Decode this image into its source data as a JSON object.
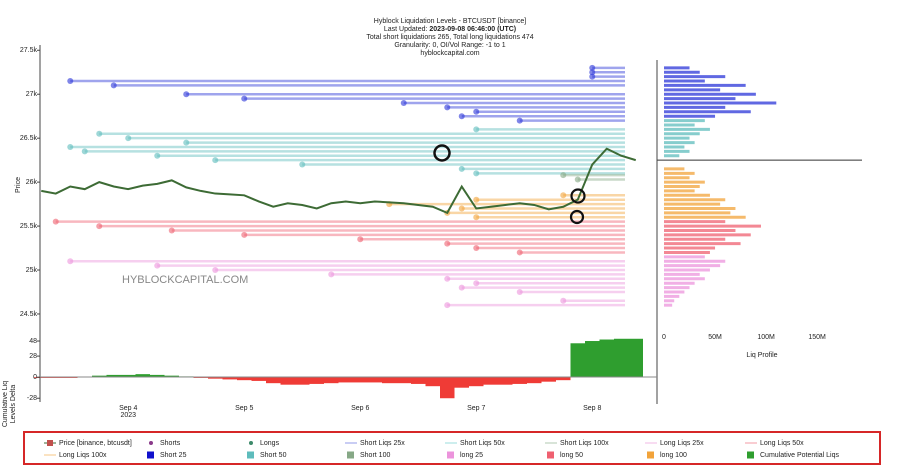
{
  "chart_data": {
    "type": "liquidation",
    "title": "Hyblock Liquidation Levels - BTCUSDT [binance]",
    "updated_prefix": "Last Updated: ",
    "updated_time": "2023-09-08 06:46:00 (UTC)",
    "subtitle": "Total short liquidations 265, Total long liquidations 474",
    "settings_line": "Granularity: 0, OI/Vol Range: -1 to 1",
    "source": "hyblockcapital.com",
    "watermark": "HYBLOCKCAPITAL.COM",
    "y_label": "Price",
    "delta_label": "Cumulative Liq Levels Delta",
    "profile_label": "Liq Profile",
    "year": "2023",
    "categories": [
      null,
      null,
      null,
      null,
      null,
      null,
      "Sep 4",
      null,
      null,
      null,
      null,
      null,
      null,
      null,
      "Sep 5",
      null,
      null,
      null,
      null,
      null,
      null,
      null,
      "Sep 6",
      null,
      null,
      null,
      null,
      null,
      null,
      null,
      "Sep 7",
      null,
      null,
      null,
      null,
      null,
      null,
      null,
      "Sep 8",
      null,
      null,
      null
    ],
    "price": {
      "name": "Price [binance, btcusdt]",
      "color": "#3d6b35",
      "values": [
        25900,
        25870,
        25950,
        25920,
        26000,
        25950,
        25920,
        25960,
        25980,
        26020,
        25940,
        25900,
        25870,
        25860,
        25850,
        25780,
        25720,
        25760,
        25740,
        25700,
        25760,
        25780,
        25760,
        25780,
        25770,
        25760,
        25740,
        25720,
        25650,
        25950,
        25700,
        25720,
        25740,
        25760,
        25740,
        25690,
        25720,
        25800,
        26200,
        26380,
        26300,
        26250
      ]
    },
    "ylim": [
      24420,
      27560
    ],
    "yticks": [
      {
        "value": 27500,
        "label": "27.5k"
      },
      {
        "value": 27000,
        "label": "27k"
      },
      {
        "value": 26500,
        "label": "26.5k"
      },
      {
        "value": 26000,
        "label": "26k"
      },
      {
        "value": 25500,
        "label": "25.5k"
      },
      {
        "value": 25000,
        "label": "25k"
      },
      {
        "value": 24500,
        "label": "24.5k"
      }
    ],
    "liq_levels": [
      {
        "name": "Short 25",
        "color": "#2b35d8",
        "values": [
          27300,
          27250,
          27200,
          27150,
          27100,
          27000,
          26950,
          26900,
          26850,
          26800,
          26750,
          26700
        ],
        "x_start": [
          38,
          38,
          38,
          2,
          5,
          10,
          14,
          25,
          28,
          30,
          29,
          33
        ]
      },
      {
        "name": "Short 50",
        "color": "#5ebcbc",
        "values": [
          26600,
          26550,
          26500,
          26450,
          26400,
          26350,
          26300,
          26250,
          26200,
          26150,
          26100
        ],
        "x_start": [
          30,
          4,
          6,
          10,
          2,
          3,
          8,
          12,
          18,
          29,
          30
        ]
      },
      {
        "name": "Short 100",
        "color": "#86a886",
        "values": [
          26080,
          26030
        ],
        "x_start": [
          36,
          37
        ]
      },
      {
        "name": "long 25",
        "color": "#ec94dc",
        "values": [
          25100,
          25050,
          25000,
          24950,
          24900,
          24850,
          24800,
          24750,
          24650,
          24600
        ],
        "x_start": [
          2,
          8,
          12,
          20,
          28,
          30,
          29,
          33,
          36,
          28
        ]
      },
      {
        "name": "long 50",
        "color": "#ef6070",
        "values": [
          25550,
          25500,
          25450,
          25400,
          25350,
          25300,
          25250,
          25200
        ],
        "x_start": [
          1,
          4,
          9,
          14,
          22,
          28,
          30,
          33
        ]
      },
      {
        "name": "long 100",
        "color": "#f2a33a",
        "values": [
          25850,
          25800,
          25750,
          25700,
          25650,
          25600
        ],
        "x_start": [
          36,
          30,
          24,
          29,
          28,
          30
        ]
      }
    ],
    "delta": {
      "name": "Cumulative Potential Liqs",
      "positive_color": "#2f9e2f",
      "negative_color": "#ef3b36",
      "values": [
        -1,
        -1,
        -1,
        0,
        2,
        3,
        3,
        4,
        3,
        2,
        1,
        -1,
        -2,
        -3,
        -4,
        -5,
        -8,
        -10,
        -10,
        -9,
        -8,
        -7,
        -7,
        -7,
        -8,
        -8,
        -9,
        -12,
        -28,
        -14,
        -12,
        -10,
        -10,
        -9,
        -8,
        -6,
        -4,
        45,
        48,
        50,
        51,
        51
      ]
    },
    "delta_ylim": [
      -33,
      56
    ],
    "delta_yticks": [
      -28,
      0,
      28,
      48
    ],
    "profile": [
      {
        "color": "#2b35d8",
        "prices": [
          27300,
          27250,
          27200,
          27150,
          27100,
          27050,
          27000,
          26950,
          26900,
          26850,
          26800,
          26750
        ],
        "values": [
          25000000,
          35000000,
          60000000,
          40000000,
          80000000,
          55000000,
          90000000,
          70000000,
          110000000,
          60000000,
          85000000,
          50000000
        ]
      },
      {
        "color": "#5ebcbc",
        "prices": [
          26700,
          26650,
          26600,
          26550,
          26500,
          26450,
          26400,
          26350,
          26300
        ],
        "values": [
          40000000,
          30000000,
          45000000,
          35000000,
          25000000,
          30000000,
          20000000,
          25000000,
          15000000
        ]
      },
      {
        "color": "#f2a33a",
        "prices": [
          26150,
          26100,
          26050,
          26000,
          25950,
          25900,
          25850,
          25800,
          25750,
          25700,
          25650,
          25600
        ],
        "values": [
          20000000,
          30000000,
          25000000,
          40000000,
          35000000,
          30000000,
          45000000,
          60000000,
          55000000,
          70000000,
          65000000,
          80000000
        ]
      },
      {
        "color": "#ef6070",
        "prices": [
          25550,
          25500,
          25450,
          25400,
          25350,
          25300,
          25250,
          25200
        ],
        "values": [
          60000000,
          95000000,
          70000000,
          85000000,
          60000000,
          75000000,
          50000000,
          45000000
        ]
      },
      {
        "color": "#ec94dc",
        "prices": [
          25150,
          25100,
          25050,
          25000,
          24950,
          24900,
          24850,
          24800,
          24750,
          24700,
          24650,
          24600
        ],
        "values": [
          40000000,
          60000000,
          55000000,
          45000000,
          35000000,
          40000000,
          30000000,
          25000000,
          20000000,
          15000000,
          10000000,
          8000000
        ]
      }
    ],
    "profile_xlim": [
      0,
      192000000
    ],
    "profile_xticks": [
      0,
      {
        "value": 50000000,
        "label": "50M"
      },
      {
        "value": 100000000,
        "label": "100M"
      },
      {
        "value": 150000000,
        "label": "150M"
      }
    ],
    "legend": [
      {
        "name": "Price [binance, btcusdt]",
        "color": "#c0504d",
        "symbol": "candle"
      },
      {
        "name": "Shorts",
        "color": "#8a3a8a",
        "symbol": "dot"
      },
      {
        "name": "Longs",
        "color": "#3d8a6a",
        "symbol": "dot"
      },
      {
        "name": "Short Liqs 25x",
        "color": "#c9cdf4",
        "symbol": "line"
      },
      {
        "name": "Short Liqs 50x",
        "color": "#cdeeee",
        "symbol": "line"
      },
      {
        "name": "Short Liqs 100x",
        "color": "#d8e4d8",
        "symbol": "line"
      },
      {
        "name": "Long Liqs 25x",
        "color": "#f8dcf2",
        "symbol": "line"
      },
      {
        "name": "Long Liqs 50x",
        "color": "#f9cdd2",
        "symbol": "line"
      },
      {
        "name": "Long Liqs 100x",
        "color": "#fbe3c2",
        "symbol": "line"
      },
      {
        "name": "Short 25",
        "color": "#1111cc",
        "symbol": "square"
      },
      {
        "name": "Short 50",
        "color": "#5ebcbc",
        "symbol": "square"
      },
      {
        "name": "Short 100",
        "color": "#86a886",
        "symbol": "square"
      },
      {
        "name": "long 25",
        "color": "#ec94dc",
        "symbol": "square"
      },
      {
        "name": "long 50",
        "color": "#ef6070",
        "symbol": "square"
      },
      {
        "name": "long 100",
        "color": "#f2a33a",
        "symbol": "square"
      },
      {
        "name": "Cumulative Potential Liqs",
        "color": "#2f9e2f",
        "symbol": "square"
      }
    ]
  }
}
